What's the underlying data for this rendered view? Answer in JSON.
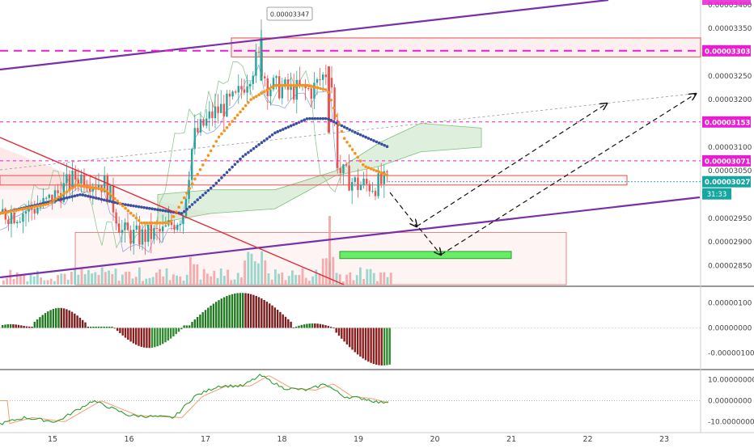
{
  "chart_data": [
    {
      "type": "candlestick",
      "pane": "price",
      "x_ticks": [
        "15",
        "16",
        "17",
        "18",
        "19",
        "20",
        "21",
        "22",
        "23"
      ],
      "y_ticks": [
        "0.00002850",
        "0.00002900",
        "0.00002950",
        "0.00003050",
        "0.00003100",
        "0.00003200",
        "0.00003250",
        "0.00003350",
        "0.00003400"
      ],
      "ylim": [
        2.81e-05,
        3.41e-05
      ],
      "price_badges": [
        {
          "label": "0.00003303",
          "value": 3.303e-05,
          "color": "#e91ed3"
        },
        {
          "label": "0.00003153",
          "value": 3.153e-05,
          "color": "#e91ed3"
        },
        {
          "label": "0.00003071",
          "value": 3.071e-05,
          "color": "#e91ed3"
        },
        {
          "label": "0.00003027",
          "value": 3.027e-05,
          "color": "#16a6a0"
        }
      ],
      "countdown": "31:33",
      "high_callout": "0.00003347",
      "high_value": 3.347e-05,
      "last_close": 3.027e-05,
      "series": [
        {
          "name": "ema_fast",
          "color": "#f7931a",
          "style": "dots"
        },
        {
          "name": "ema_slow",
          "color": "#3a4fa0",
          "style": "dots"
        },
        {
          "name": "ichimoku_cloud",
          "color": "#7cc17a",
          "style": "band"
        },
        {
          "name": "volume",
          "up_color": "#7fcfc3",
          "down_color": "#f19a9a"
        }
      ],
      "zones": [
        {
          "kind": "resistance",
          "from": 3.29e-05,
          "to": 3.33e-05
        },
        {
          "kind": "support",
          "from": 3.02e-05,
          "to": 3.04e-05
        },
        {
          "kind": "target",
          "color": "#66ee66",
          "from": 2.86e-05,
          "to": 2.88e-05
        }
      ]
    },
    {
      "type": "bar",
      "pane": "macd_histogram",
      "y_ticks": [
        "0.00000100",
        "0.00000000",
        "-0.00000100"
      ],
      "ylim": [
        -1.6e-06,
        1.6e-06
      ],
      "colors": {
        "pos_up": "#1f7a1f",
        "pos_down": "#7a1d1d",
        "neg_down": "#8b1d1d",
        "neg_up": "#2e8b2e"
      }
    },
    {
      "type": "line",
      "pane": "oscillator",
      "y_ticks": [
        "10.00000000",
        "0.00000000",
        "-10.00000000"
      ],
      "ylim": [
        -14,
        14
      ],
      "series": [
        {
          "name": "main",
          "color": "#2e9b2e"
        },
        {
          "name": "signal",
          "color": "#f0a070"
        }
      ]
    }
  ]
}
